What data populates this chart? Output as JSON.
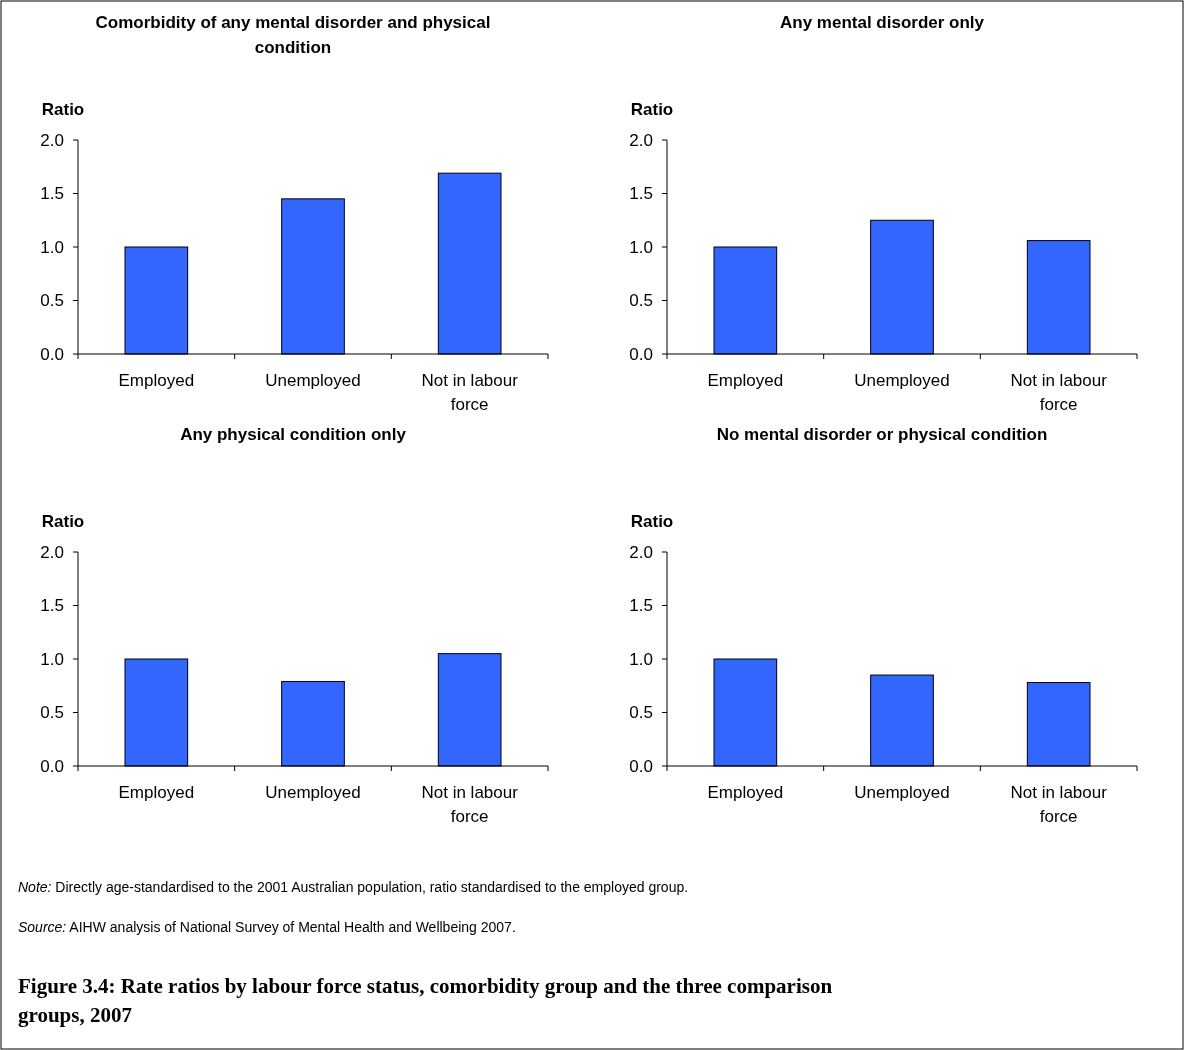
{
  "chart_data": [
    {
      "type": "bar",
      "title": "Comorbidity of any mental disorder and physical condition",
      "ylabel": "Ratio",
      "categories": [
        "Employed",
        "Unemployed",
        "Not in labour force"
      ],
      "values": [
        1.0,
        1.45,
        1.69
      ],
      "color": "#3366ff",
      "ylim": [
        0,
        2
      ],
      "yticks": [
        {
          "value": 0,
          "label": "0.0"
        },
        {
          "value": 0.5,
          "label": "0.5"
        },
        {
          "value": 1,
          "label": "1.0"
        },
        {
          "value": 1.5,
          "label": "1.5"
        },
        {
          "value": 2,
          "label": "2.0"
        }
      ],
      "grid": false
    },
    {
      "type": "bar",
      "title": "Any mental disorder only",
      "ylabel": "Ratio",
      "categories": [
        "Employed",
        "Unemployed",
        "Not in labour force"
      ],
      "values": [
        1.0,
        1.25,
        1.06
      ],
      "color": "#3366ff",
      "ylim": [
        0,
        2
      ],
      "yticks": [
        {
          "value": 0,
          "label": "0.0"
        },
        {
          "value": 0.5,
          "label": "0.5"
        },
        {
          "value": 1,
          "label": "1.0"
        },
        {
          "value": 1.5,
          "label": "1.5"
        },
        {
          "value": 2,
          "label": "2.0"
        }
      ],
      "grid": false
    },
    {
      "type": "bar",
      "title": "Any physical condition only",
      "ylabel": "Ratio",
      "categories": [
        "Employed",
        "Unemployed",
        "Not in labour force"
      ],
      "values": [
        1.0,
        0.79,
        1.05
      ],
      "color": "#3366ff",
      "ylim": [
        0,
        2
      ],
      "yticks": [
        {
          "value": 0,
          "label": "0.0"
        },
        {
          "value": 0.5,
          "label": "0.5"
        },
        {
          "value": 1,
          "label": "1.0"
        },
        {
          "value": 1.5,
          "label": "1.5"
        },
        {
          "value": 2,
          "label": "2.0"
        }
      ],
      "grid": false
    },
    {
      "type": "bar",
      "title": "No mental disorder or physical condition",
      "ylabel": "Ratio",
      "categories": [
        "Employed",
        "Unemployed",
        "Not in labour force"
      ],
      "values": [
        1.0,
        0.85,
        0.78
      ],
      "color": "#3366ff",
      "ylim": [
        0,
        2
      ],
      "yticks": [
        {
          "value": 0,
          "label": "0.0"
        },
        {
          "value": 0.5,
          "label": "0.5"
        },
        {
          "value": 1,
          "label": "1.0"
        },
        {
          "value": 1.5,
          "label": "1.5"
        },
        {
          "value": 2,
          "label": "2.0"
        }
      ],
      "grid": false,
      "annotations": [
        "Note: Directly age-standardised to the 2001 Australian population, ratio standardised to the employed group.",
        "Source: AIHW analysis of National Survey of Mental Health and Wellbeing 2007.",
        "Figure 3.4: Rate ratios by labour force status, comorbidity group and the three comparison groups, 2007"
      ]
    }
  ]
}
